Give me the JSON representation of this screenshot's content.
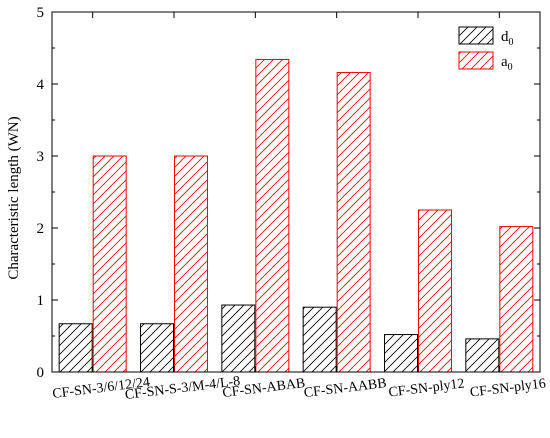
{
  "chart_data": {
    "type": "bar",
    "title": "",
    "xlabel": "",
    "ylabel": "Characteristic length (WN)",
    "ylim": [
      0,
      5
    ],
    "yticks": [
      0,
      1,
      2,
      3,
      4,
      5
    ],
    "grid": false,
    "legend_position": "top-right",
    "categories": [
      "CF-SN-3/6/12/24",
      "CF-SN-S-3/M-4/L-8",
      "CF-SN-ABAB",
      "CF-SN-AABB",
      "CF-SN-ply12",
      "CF-SN-ply16"
    ],
    "series": [
      {
        "name": "d",
        "subscript": "0",
        "color": "#000000",
        "pattern": "hatch",
        "values": [
          0.67,
          0.67,
          0.93,
          0.9,
          0.52,
          0.46
        ]
      },
      {
        "name": "a",
        "subscript": "0",
        "color": "#ff0000",
        "pattern": "hatch",
        "values": [
          3.0,
          3.0,
          4.34,
          4.16,
          2.25,
          2.02
        ]
      }
    ]
  }
}
